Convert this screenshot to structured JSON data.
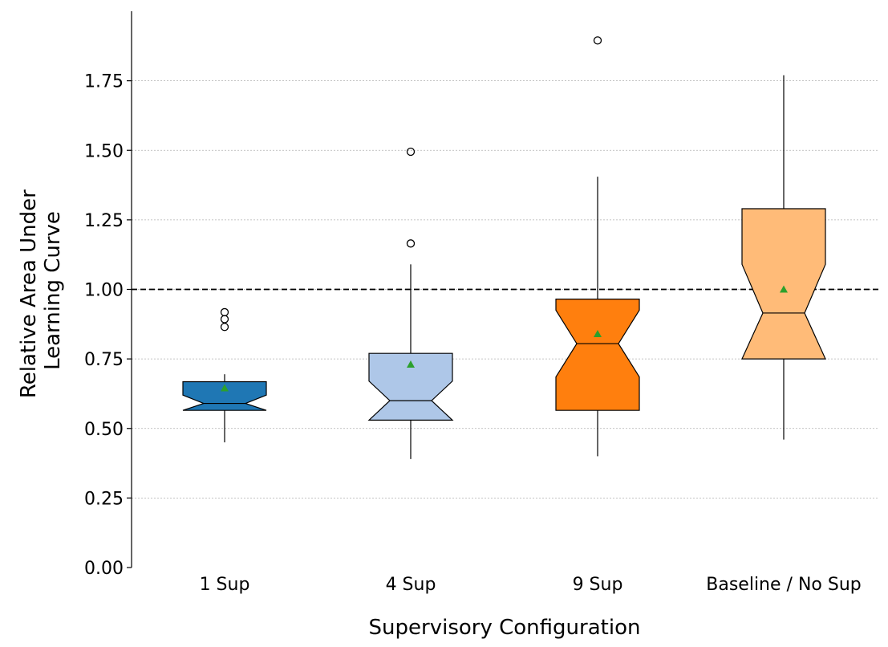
{
  "chart_data": {
    "type": "boxplot",
    "xlabel": "Supervisory Configuration",
    "ylabel_lines": [
      "Relative Area Under",
      "Learning Curve"
    ],
    "ylim": [
      0,
      2.0
    ],
    "yticks": [
      0,
      0.25,
      0.5,
      0.75,
      1.0,
      1.25,
      1.5,
      1.75
    ],
    "ytick_labels": [
      "0.00",
      "0.25",
      "0.50",
      "0.75",
      "1.00",
      "1.25",
      "1.50",
      "1.75"
    ],
    "grid": "horizontal-dotted",
    "reference_line": 1.0,
    "categories": [
      "1 Sup",
      "4 Sup",
      "9 Sup",
      "Baseline / No Sup"
    ],
    "boxes": [
      {
        "name": "1 Sup",
        "color": "#1f77b4",
        "whislo": 0.45,
        "q1": 0.565,
        "notch_lo": 0.565,
        "med": 0.59,
        "notch_hi": 0.62,
        "q3": 0.668,
        "whishi": 0.695,
        "mean": 0.645,
        "fliers": [
          0.865,
          0.893,
          0.918
        ]
      },
      {
        "name": "4 Sup",
        "color": "#aec7e8",
        "whislo": 0.39,
        "q1": 0.53,
        "notch_lo": 0.53,
        "med": 0.6,
        "notch_hi": 0.67,
        "q3": 0.77,
        "whishi": 1.09,
        "mean": 0.73,
        "fliers": [
          1.165,
          1.495
        ]
      },
      {
        "name": "9 Sup",
        "color": "#ff7f0e",
        "whislo": 0.4,
        "q1": 0.565,
        "notch_lo": 0.685,
        "med": 0.805,
        "notch_hi": 0.925,
        "q3": 0.965,
        "whishi": 1.405,
        "mean": 0.84,
        "fliers": [
          1.895
        ]
      },
      {
        "name": "Baseline / No Sup",
        "color": "#ffbb78",
        "whislo": 0.46,
        "q1": 0.75,
        "notch_lo": 0.75,
        "med": 0.915,
        "notch_hi": 1.09,
        "q3": 1.29,
        "whishi": 1.77,
        "mean": 1.0,
        "fliers": []
      }
    ],
    "mean_marker_color": "#2ca02c",
    "legend": "none"
  }
}
